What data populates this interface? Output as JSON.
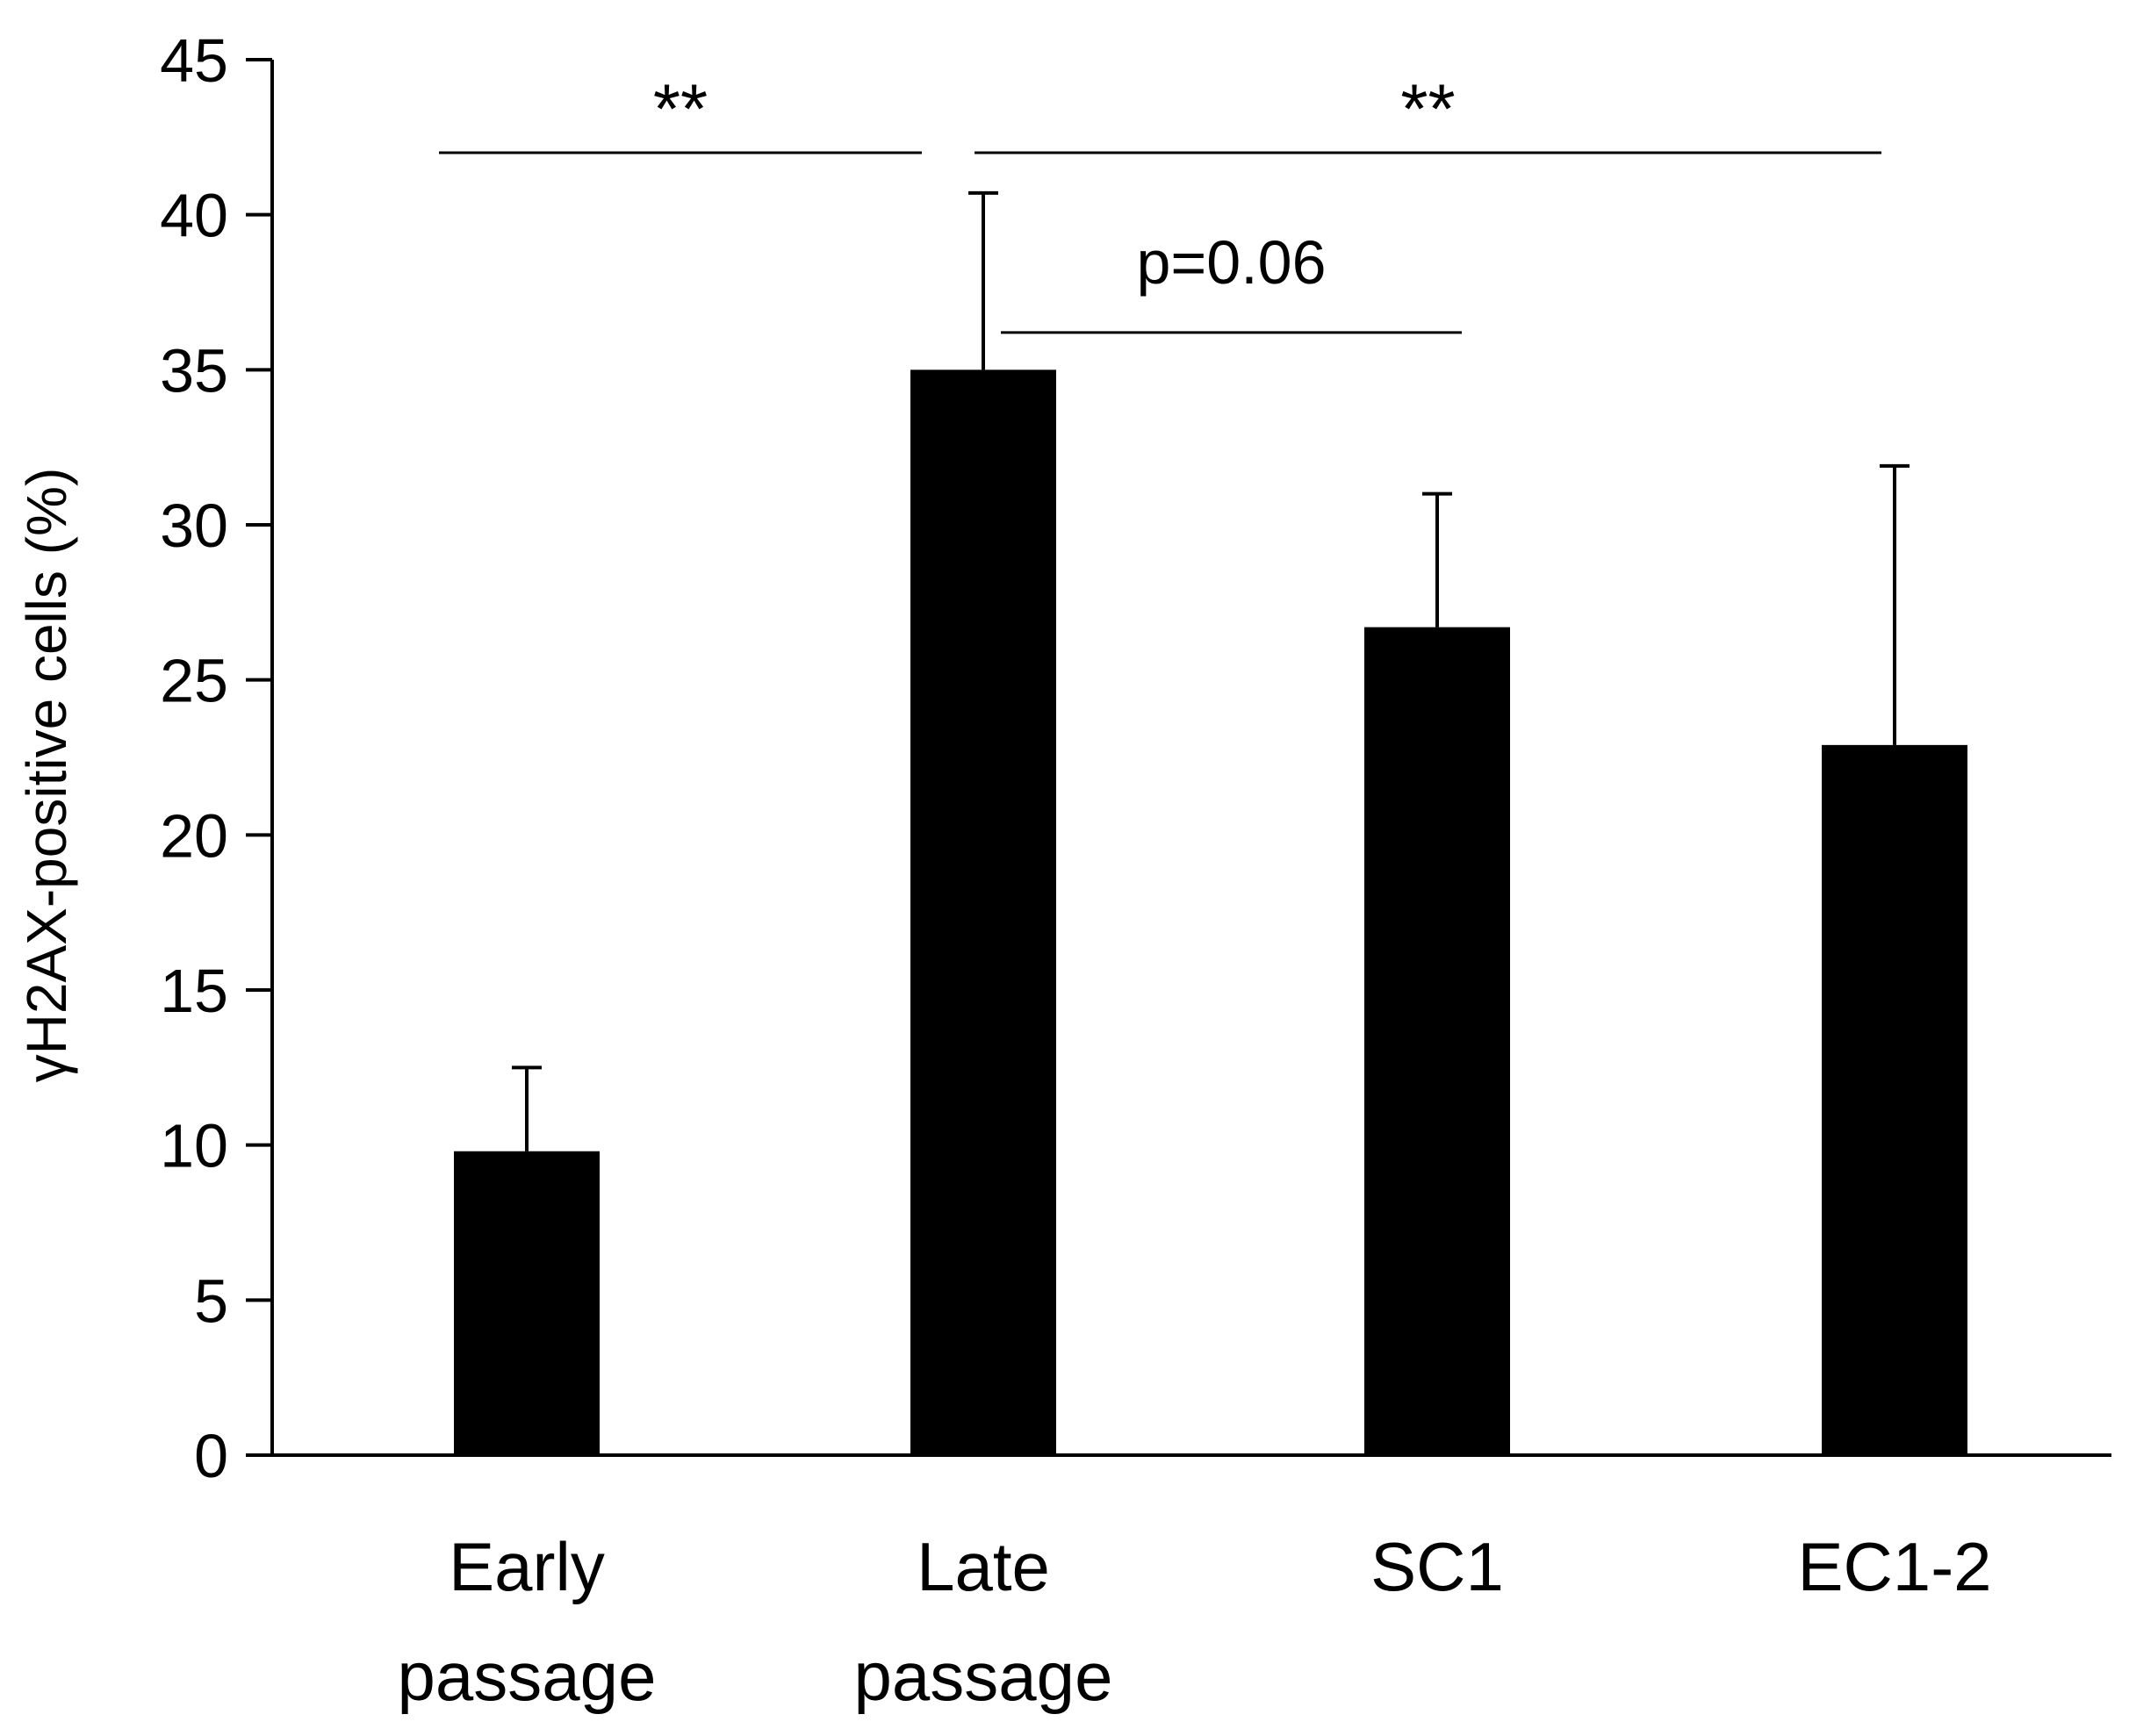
{
  "chart_data": {
    "type": "bar",
    "title": "",
    "xlabel": "",
    "ylabel": "γH2AX-positive cells (%)",
    "ylim": [
      0,
      45
    ],
    "yticks": [
      0,
      5,
      10,
      15,
      20,
      25,
      30,
      35,
      40,
      45
    ],
    "ytick_labels": [
      "0",
      "5",
      "10",
      "15",
      "20",
      "25",
      "30",
      "35",
      "40",
      "45"
    ],
    "grid": false,
    "legend": "none",
    "bar_color": "#000000",
    "categories": [
      {
        "line1": "Early",
        "line2": "passage"
      },
      {
        "line1": "Late",
        "line2": "passage"
      },
      {
        "line1": "SC1",
        "line2": ""
      },
      {
        "line1": "EC1-2",
        "line2": ""
      }
    ],
    "series": [
      {
        "name": "γH2AX-positive cells (%)",
        "values": [
          9.8,
          35.0,
          26.7,
          22.9
        ],
        "error_upper": [
          2.7,
          5.7,
          4.3,
          9.0
        ]
      }
    ],
    "significance": [
      {
        "from": 0,
        "to": 1,
        "label": "**",
        "y": 42,
        "label_y": 44
      },
      {
        "from": 1,
        "to": 3,
        "label": "**",
        "y": 42,
        "label_y": 44
      },
      {
        "from": 1,
        "to": 2,
        "label": "p=0.06",
        "y": 36.2,
        "label_y": 38.4
      }
    ]
  }
}
